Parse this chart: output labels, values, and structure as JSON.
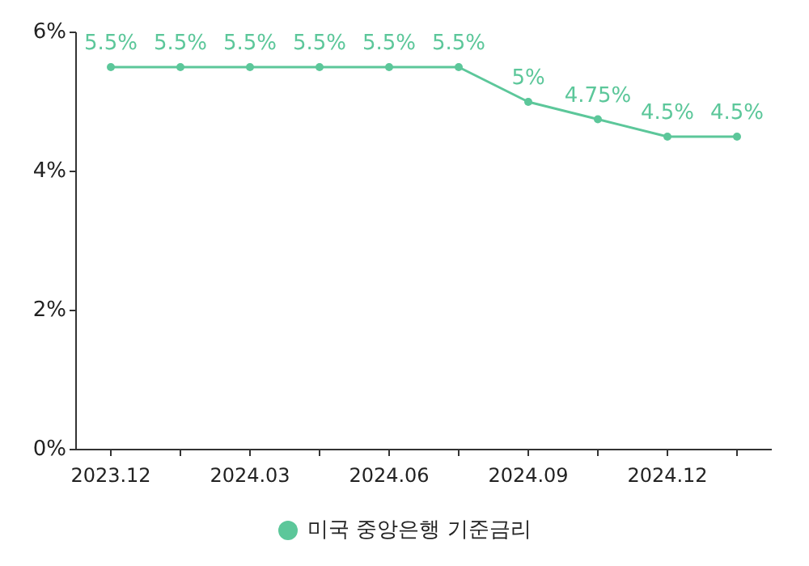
{
  "chart_data": {
    "type": "line",
    "categories": [
      "2023.12",
      null,
      "2024.03",
      null,
      "2024.06",
      null,
      "2024.09",
      null,
      "2024.12",
      null
    ],
    "series": [
      {
        "name": "미국 중앙은행 기준금리",
        "color": "#5cc79a",
        "values": [
          5.5,
          5.5,
          5.5,
          5.5,
          5.5,
          5.5,
          5,
          4.75,
          4.5,
          4.5
        ],
        "value_labels": [
          "5.5%",
          "5.5%",
          "5.5%",
          "5.5%",
          "5.5%",
          "5.5%",
          "5%",
          "4.75%",
          "4.5%",
          "4.5%"
        ]
      }
    ],
    "ylim": [
      0,
      6
    ],
    "yticks": [
      {
        "value": 0,
        "label": "0%"
      },
      {
        "value": 2,
        "label": "2%"
      },
      {
        "value": 4,
        "label": "4%"
      },
      {
        "value": 6,
        "label": "6%"
      }
    ],
    "marker": "circle",
    "legend": "bottom"
  }
}
